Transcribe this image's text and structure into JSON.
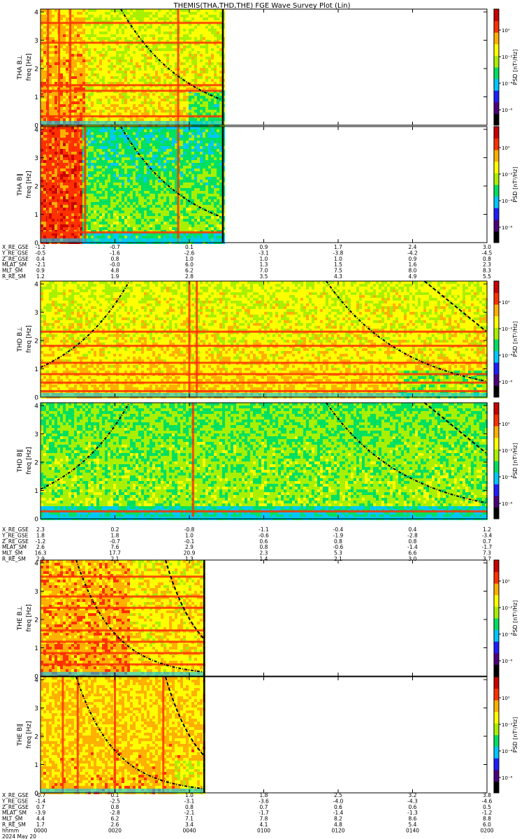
{
  "title": "THEMIS(THA,THD,THE) FGE Wave Survey Plot (Lin)",
  "freq_label": "freq [Hz]",
  "colorbar_label": "PSD [nT²/Hz]",
  "colorbar_ticks": [
    "10⁰",
    "10⁻²",
    "10⁻⁴",
    "10⁻⁶"
  ],
  "y_ticks": [
    "0",
    "1",
    "2",
    "3",
    "4"
  ],
  "panels": [
    {
      "probe": "THA",
      "component": "B⊥",
      "label": "THA B⊥",
      "has_data_until": 0.41
    },
    {
      "probe": "THA",
      "component": "B∥",
      "label": "THA B∥",
      "has_data_until": 0.41
    },
    {
      "probe": "THD",
      "component": "B⊥",
      "label": "THD B⊥",
      "has_data_until": 1.0
    },
    {
      "probe": "THD",
      "component": "B∥",
      "label": "THD B∥",
      "has_data_until": 1.0
    },
    {
      "probe": "THE",
      "component": "B⊥",
      "label": "THE B⊥",
      "has_data_until": 0.37
    },
    {
      "probe": "THE",
      "component": "B∥",
      "label": "THE B∥",
      "has_data_until": 0.37
    }
  ],
  "ephemeris_groups": [
    {
      "rows": [
        {
          "label": "X_RE_GSE",
          "values": [
            "-1.2",
            "-0.7",
            "0.1",
            "0.9",
            "1.7",
            "2.4",
            "3.0"
          ]
        },
        {
          "label": "Y_RE_GSE",
          "values": [
            "-0.5",
            "-1.6",
            "-2.6",
            "-3.1",
            "-3.8",
            "-4.2",
            "-4.5"
          ]
        },
        {
          "label": "Z_RE_GSE",
          "values": [
            "0.4",
            "0.8",
            "1.0",
            "1.0",
            "1.0",
            "0.9",
            "0.8"
          ]
        },
        {
          "label": "MLAT_SM",
          "values": [
            "-2.1",
            "-0.0",
            "6.0",
            "1.3",
            "1.5",
            "1.6",
            "2.3"
          ]
        },
        {
          "label": "MLT_SM",
          "values": [
            "0.9",
            "4.8",
            "6.2",
            "7.0",
            "7.5",
            "8.0",
            "8.3"
          ]
        },
        {
          "label": "R_RE_SM",
          "values": [
            "1.2",
            "1.9",
            "2.8",
            "3.5",
            "4.3",
            "4.9",
            "5.5"
          ]
        }
      ]
    },
    {
      "rows": [
        {
          "label": "X_RE_GSE",
          "values": [
            "2.3",
            "0.2",
            "-0.8",
            "-1.1",
            "-0.4",
            "0.4",
            "1.2"
          ]
        },
        {
          "label": "Y_RE_GSE",
          "values": [
            "1.8",
            "1.8",
            "1.0",
            "-0.6",
            "-1.9",
            "-2.8",
            "-3.4"
          ]
        },
        {
          "label": "Z_RE_GSE",
          "values": [
            "-1.2",
            "-0.7",
            "-0.1",
            "0.6",
            "0.8",
            "0.8",
            "0.7"
          ]
        },
        {
          "label": "MLAT_SM",
          "values": [
            "2.6",
            "7.6",
            "2.9",
            "0.8",
            "-0.6",
            "-1.4",
            "-1.7"
          ]
        },
        {
          "label": "MLT_SM",
          "values": [
            "16.3",
            "17.7",
            "20.9",
            "2.3",
            "5.3",
            "6.6",
            "7.3"
          ]
        },
        {
          "label": "R_RE_SM",
          "values": [
            "2.9",
            "2.1",
            "1.3",
            "1.4",
            "2.1",
            "3.0",
            "3.7"
          ]
        }
      ]
    },
    {
      "rows": [
        {
          "label": "X_RE_GSE",
          "values": [
            "-0.7",
            "0.1",
            "1.0",
            "1.8",
            "2.5",
            "3.2",
            "3.8"
          ]
        },
        {
          "label": "Y_RE_GSE",
          "values": [
            "-1.4",
            "-2.5",
            "-3.1",
            "-3.6",
            "-4.0",
            "-4.3",
            "-4.6"
          ]
        },
        {
          "label": "Z_RE_GSE",
          "values": [
            "0.7",
            "0.8",
            "0.8",
            "0.7",
            "0.6",
            "0.6",
            "0.5"
          ]
        },
        {
          "label": "MLAT_SM",
          "values": [
            "-3.9",
            "-2.8",
            "-2.1",
            "-1.7",
            "-1.4",
            "-1.3",
            "-1.2"
          ]
        },
        {
          "label": "MLT_SM",
          "values": [
            "4.4",
            "6.2",
            "7.1",
            "7.8",
            "8.2",
            "8.6",
            "8.8"
          ]
        },
        {
          "label": "R_RE_SM",
          "values": [
            "1.7",
            "2.6",
            "3.4",
            "4.1",
            "4.8",
            "5.4",
            "6.0"
          ]
        },
        {
          "label": "hhmm",
          "values": [
            "0000",
            "0020",
            "0040",
            "0100",
            "0120",
            "0140",
            "0200"
          ]
        }
      ],
      "date": "2024 May 20"
    }
  ],
  "colors": {
    "background": "#ffffff",
    "curve": "#000000",
    "colormap": [
      "#000000",
      "#4a007a",
      "#1e1eff",
      "#00c8ff",
      "#00e060",
      "#a8f000",
      "#ffff00",
      "#ffb000",
      "#ff3000",
      "#c80000"
    ]
  },
  "chart_data": {
    "type": "heatmap",
    "title": "THEMIS(THA,THD,THE) FGE Wave Survey Plot (Lin)",
    "xlabel": "hhmm",
    "x_ticks": [
      "0000",
      "0020",
      "0040",
      "0100",
      "0120",
      "0140",
      "0200"
    ],
    "ylabel": "freq [Hz]",
    "ylim": [
      0,
      4.1
    ],
    "zlabel": "PSD [nT²/Hz]",
    "zscale": "log",
    "zlim": [
      1e-06,
      10
    ],
    "panels": [
      {
        "name": "THA B⊥",
        "data_end_hhmm": "0049",
        "lines_hz": [
          0.3,
          1.2,
          1.4,
          2.9,
          3.6
        ],
        "spikes_hhmm": [
          "0002",
          "0005",
          "0008",
          "0037"
        ]
      },
      {
        "name": "THA B∥",
        "data_end_hhmm": "0049",
        "lines_hz": [
          0.35
        ],
        "spikes_hhmm": [
          "0002",
          "0005",
          "0008",
          "0010",
          "0012",
          "0037"
        ]
      },
      {
        "name": "THD B⊥",
        "data_end_hhmm": "0200",
        "lines_hz": [
          0.2,
          0.5,
          0.8,
          1.2,
          1.8,
          2.3
        ],
        "spikes_hhmm": [
          "0040",
          "0042"
        ]
      },
      {
        "name": "THD B∥",
        "data_end_hhmm": "0200",
        "lines_hz": [
          0.25
        ],
        "spikes_hhmm": [
          "0041"
        ]
      },
      {
        "name": "THE B⊥",
        "data_end_hhmm": "0044",
        "lines_hz": [
          0.4,
          0.8,
          1.2,
          1.6,
          2.4,
          2.8,
          3.5
        ],
        "spikes_hhmm": []
      },
      {
        "name": "THE B∥",
        "data_end_hhmm": "0044",
        "lines_hz": [],
        "spikes_hhmm": [
          "0006",
          "0010",
          "0020",
          "0033"
        ]
      }
    ]
  }
}
